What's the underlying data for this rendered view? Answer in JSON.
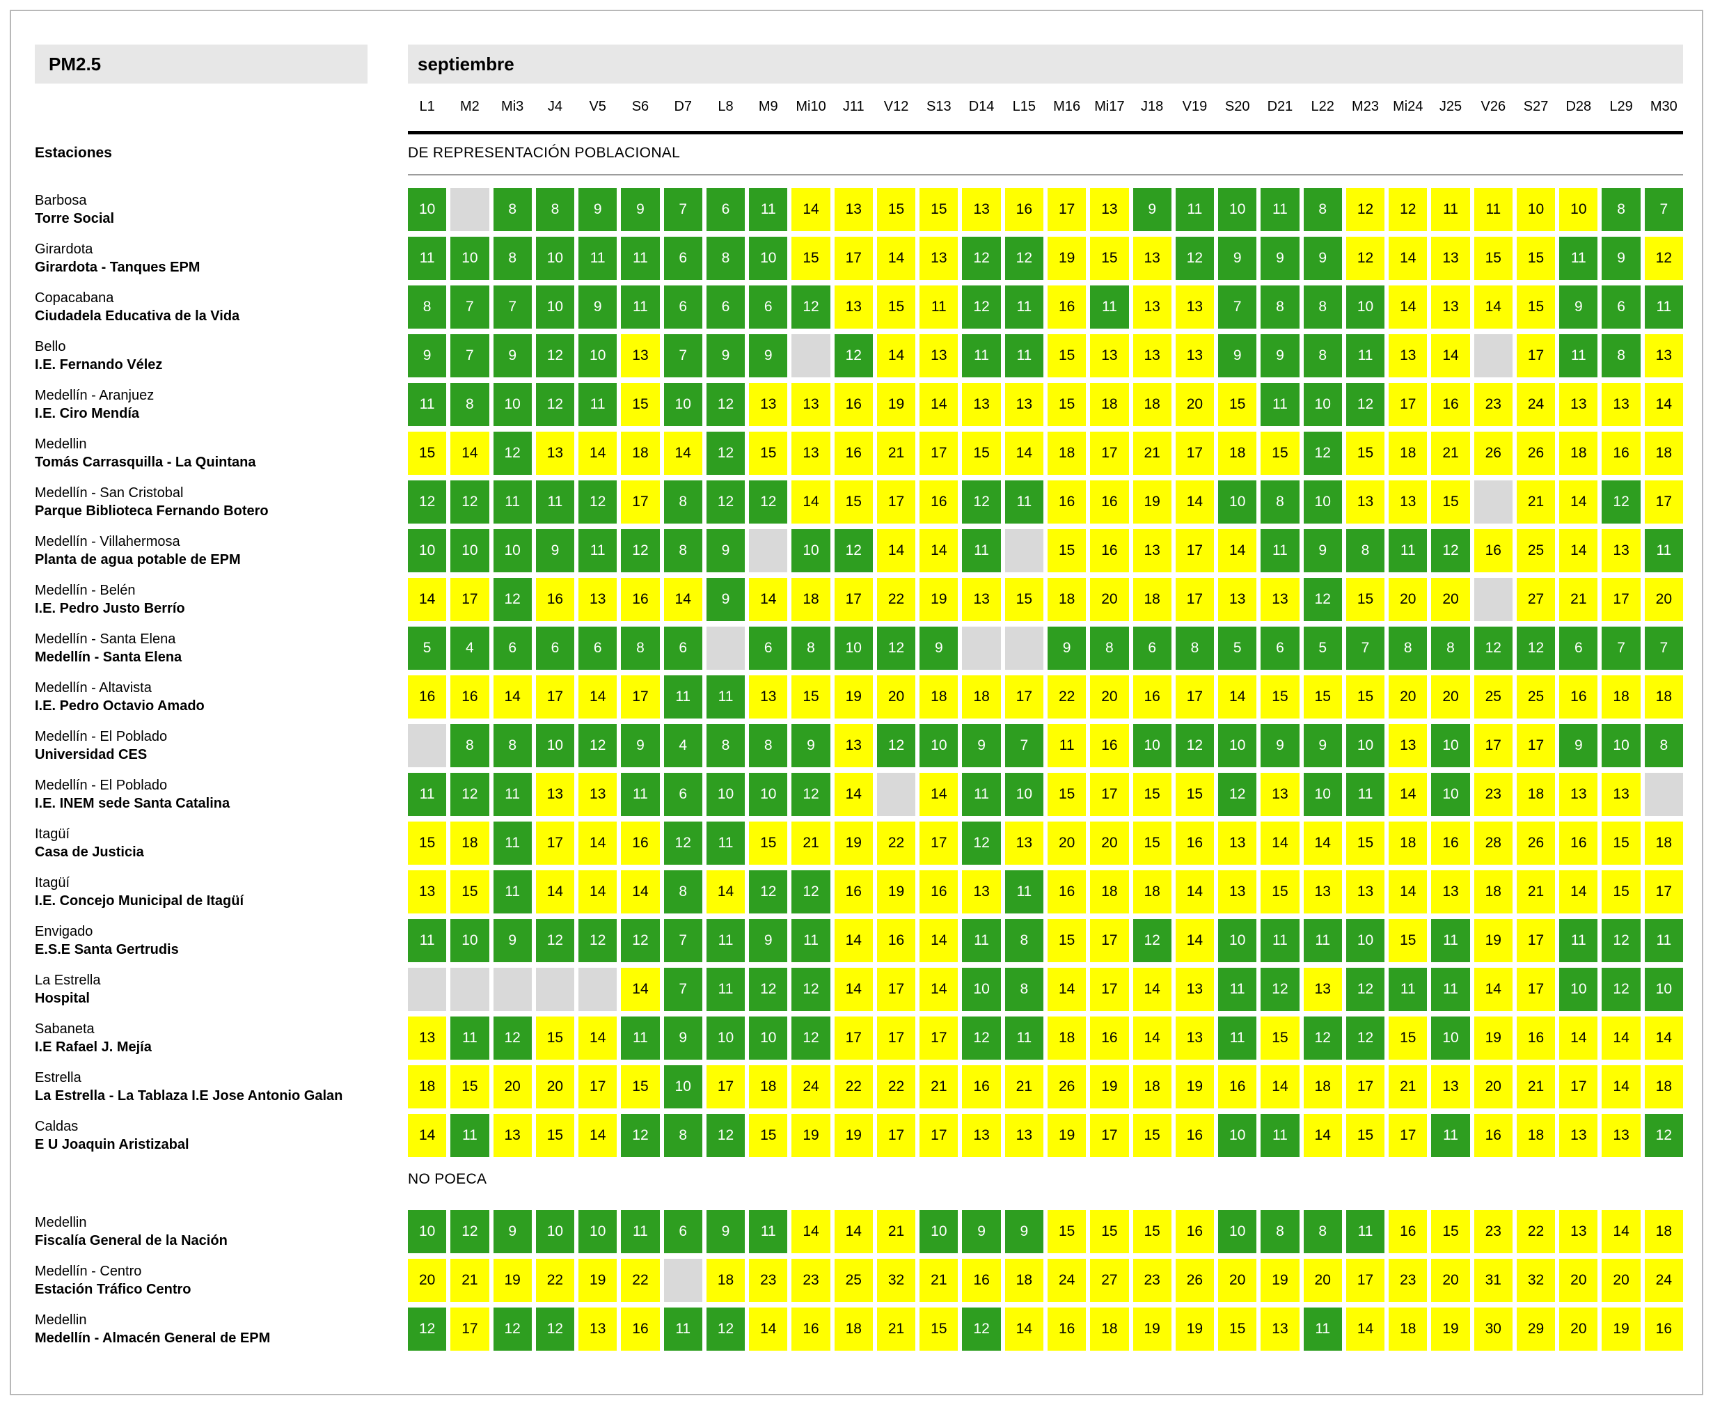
{
  "header": {
    "pollutant": "PM2.5",
    "month": "septiembre"
  },
  "labels": {
    "stations_header": "Estaciones"
  },
  "chart_data": {
    "type": "heatmap",
    "title": "PM2.5",
    "month": "septiembre",
    "columns": [
      "L1",
      "M2",
      "Mi3",
      "J4",
      "V5",
      "S6",
      "D7",
      "L8",
      "M9",
      "Mi10",
      "J11",
      "V12",
      "S13",
      "D14",
      "L15",
      "M16",
      "Mi17",
      "J18",
      "V19",
      "S20",
      "D21",
      "L22",
      "M23",
      "Mi24",
      "J25",
      "V26",
      "S27",
      "D28",
      "L29",
      "M30"
    ],
    "palette": {
      "g": "#2e9e20",
      "y": "#ffff00",
      "x": "#d9d9d9"
    },
    "palette_meaning": {
      "g": "green-good",
      "y": "yellow-moderate",
      "x": "gray-no-data"
    },
    "sections": [
      {
        "label": "DE REPRESENTACIÓN POBLACIONAL",
        "rows": [
          {
            "location": "Barbosa",
            "station": "Torre Social",
            "values": [
              10,
              null,
              8,
              8,
              9,
              9,
              7,
              6,
              11,
              14,
              13,
              15,
              15,
              13,
              16,
              17,
              13,
              9,
              11,
              10,
              11,
              8,
              12,
              12,
              11,
              11,
              10,
              10,
              8,
              7
            ],
            "colors": "gxgggggggyyyyyyyygggggyyyyyygg"
          },
          {
            "location": "Girardota",
            "station": "Girardota - Tanques EPM",
            "values": [
              11,
              10,
              8,
              10,
              11,
              11,
              6,
              8,
              10,
              15,
              17,
              14,
              13,
              12,
              12,
              19,
              15,
              13,
              12,
              9,
              9,
              9,
              12,
              14,
              13,
              15,
              15,
              11,
              9,
              12
            ],
            "colors": "gggggggggyyyyggyyyggggyyyyyggy"
          },
          {
            "location": "Copacabana",
            "station": "Ciudadela Educativa de la Vida",
            "values": [
              8,
              7,
              7,
              10,
              9,
              11,
              6,
              6,
              6,
              12,
              13,
              15,
              11,
              12,
              11,
              16,
              11,
              13,
              13,
              7,
              8,
              8,
              10,
              14,
              13,
              14,
              15,
              9,
              6,
              11
            ],
            "colors": "ggggggggggyyyggygyyggggyyyyggg"
          },
          {
            "location": "Bello",
            "station": "I.E. Fernando Vélez",
            "values": [
              9,
              7,
              9,
              12,
              10,
              13,
              7,
              9,
              9,
              null,
              12,
              14,
              13,
              11,
              11,
              15,
              13,
              13,
              13,
              9,
              9,
              8,
              11,
              13,
              14,
              null,
              17,
              11,
              8,
              13
            ],
            "colors": "gggggygggxgyyggyyyyggggyyxyggy"
          },
          {
            "location": "Medellín - Aranjuez",
            "station": "I.E. Ciro Mendía",
            "values": [
              11,
              8,
              10,
              12,
              11,
              15,
              10,
              12,
              13,
              13,
              16,
              19,
              14,
              13,
              13,
              15,
              18,
              18,
              20,
              15,
              11,
              10,
              12,
              17,
              16,
              23,
              24,
              13,
              13,
              14
            ],
            "colors": "gggggyggyyyyyyyyyyyygggyyyyyyy"
          },
          {
            "location": "Medellin",
            "station": "Tomás Carrasquilla - La Quintana",
            "values": [
              15,
              14,
              12,
              13,
              14,
              18,
              14,
              12,
              15,
              13,
              16,
              21,
              17,
              15,
              14,
              18,
              17,
              21,
              17,
              18,
              15,
              12,
              15,
              18,
              21,
              26,
              26,
              18,
              16,
              18
            ],
            "colors": "yygyyyygyyyyyyyyyyyyygyyyyyyyy"
          },
          {
            "location": "Medellín - San Cristobal",
            "station": "Parque Biblioteca Fernando Botero",
            "values": [
              12,
              12,
              11,
              11,
              12,
              17,
              8,
              12,
              12,
              14,
              15,
              17,
              16,
              12,
              11,
              16,
              16,
              19,
              14,
              10,
              8,
              10,
              13,
              13,
              15,
              null,
              21,
              14,
              12,
              17
            ],
            "colors": "gggggygggyyyyggyyyygggyyyxyygy"
          },
          {
            "location": "Medellín - Villahermosa",
            "station": "Planta de agua potable de EPM",
            "values": [
              10,
              10,
              10,
              9,
              11,
              12,
              8,
              9,
              null,
              10,
              12,
              14,
              14,
              11,
              null,
              15,
              16,
              13,
              17,
              14,
              11,
              9,
              8,
              11,
              12,
              16,
              25,
              14,
              13,
              11
            ],
            "colors": "ggggggggxggyygxyyyyygggggyyyyg"
          },
          {
            "location": "Medellín - Belén",
            "station": "I.E. Pedro Justo Berrío",
            "values": [
              14,
              17,
              12,
              16,
              13,
              16,
              14,
              9,
              14,
              18,
              17,
              22,
              19,
              13,
              15,
              18,
              20,
              18,
              17,
              13,
              13,
              12,
              15,
              20,
              20,
              null,
              27,
              21,
              17,
              20
            ],
            "colors": "yygyyyygyyyyyyyyyyyyygyyyxyyyy"
          },
          {
            "location": "Medellín - Santa Elena",
            "station": "Medellín - Santa Elena",
            "values": [
              5,
              4,
              6,
              6,
              6,
              8,
              6,
              null,
              6,
              8,
              10,
              12,
              9,
              null,
              null,
              9,
              8,
              6,
              8,
              5,
              6,
              5,
              7,
              8,
              8,
              12,
              12,
              6,
              7,
              7
            ],
            "colors": "gggggggxgggggxxggggggggggggggg"
          },
          {
            "location": "Medellín - Altavista",
            "station": "I.E. Pedro Octavio Amado",
            "values": [
              16,
              16,
              14,
              17,
              14,
              17,
              11,
              11,
              13,
              15,
              19,
              20,
              18,
              18,
              17,
              22,
              20,
              16,
              17,
              14,
              15,
              15,
              15,
              20,
              20,
              25,
              25,
              16,
              18,
              18
            ],
            "colors": "yyyyyyggyyyyyyyyyyyyyyyyyyyyyy"
          },
          {
            "location": "Medellín - El Poblado",
            "station": "Universidad CES",
            "values": [
              null,
              8,
              8,
              10,
              12,
              9,
              4,
              8,
              8,
              9,
              13,
              12,
              10,
              9,
              7,
              11,
              16,
              10,
              12,
              10,
              9,
              9,
              10,
              13,
              10,
              17,
              17,
              9,
              10,
              8
            ],
            "colors": "xgggggggggygggg yyggggggygyyggg"
          },
          {
            "location": "Medellín - El Poblado",
            "station": "I.E. INEM sede Santa Catalina",
            "values": [
              11,
              12,
              11,
              13,
              13,
              11,
              6,
              10,
              10,
              12,
              14,
              null,
              14,
              11,
              10,
              15,
              17,
              15,
              15,
              12,
              13,
              10,
              11,
              14,
              10,
              23,
              18,
              13,
              13,
              null
            ],
            "colors": "gggyygggggyxyggyyyygyggygyyyyx"
          },
          {
            "location": "Itagüí",
            "station": "Casa de Justicia",
            "values": [
              15,
              18,
              11,
              17,
              14,
              16,
              12,
              11,
              15,
              21,
              19,
              22,
              17,
              12,
              13,
              20,
              20,
              15,
              16,
              13,
              14,
              14,
              15,
              18,
              16,
              28,
              26,
              16,
              15,
              18
            ],
            "colors": "yygyyyggyyyyygyyyyyyyyyyyyyyyy"
          },
          {
            "location": "Itagüí",
            "station": "I.E. Concejo Municipal de Itagüí",
            "values": [
              13,
              15,
              11,
              14,
              14,
              14,
              8,
              14,
              12,
              12,
              16,
              19,
              16,
              13,
              11,
              16,
              18,
              18,
              14,
              13,
              15,
              13,
              13,
              14,
              13,
              18,
              21,
              14,
              15,
              17
            ],
            "colors": "yygyyygyggyyyygyyyyyyyyyyyyyyy"
          },
          {
            "location": "Envigado",
            "station": "E.S.E Santa Gertrudis",
            "values": [
              11,
              10,
              9,
              12,
              12,
              12,
              7,
              11,
              9,
              11,
              14,
              16,
              14,
              11,
              8,
              15,
              17,
              12,
              14,
              10,
              11,
              11,
              10,
              15,
              11,
              19,
              17,
              11,
              12,
              11
            ],
            "colors": "ggggggggggyyyggyygyggggygyyggg"
          },
          {
            "location": "La Estrella",
            "station": "Hospital",
            "values": [
              null,
              null,
              null,
              null,
              null,
              14,
              7,
              11,
              12,
              12,
              14,
              17,
              14,
              10,
              8,
              14,
              17,
              14,
              13,
              11,
              12,
              13,
              12,
              11,
              11,
              14,
              17,
              10,
              12,
              10
            ],
            "colors": "xxxxxyggggyyyggyyyyggygggyyggg"
          },
          {
            "location": "Sabaneta",
            "station": "I.E Rafael J. Mejía",
            "values": [
              13,
              11,
              12,
              15,
              14,
              11,
              9,
              10,
              10,
              12,
              17,
              17,
              17,
              12,
              11,
              18,
              16,
              14,
              13,
              11,
              15,
              12,
              12,
              15,
              10,
              19,
              16,
              14,
              14,
              14
            ],
            "colors": "yggyygggggyyyggyyyygyggygyyyyy"
          },
          {
            "location": "Estrella",
            "station": "La Estrella - La Tablaza I.E Jose Antonio Galan",
            "values": [
              18,
              15,
              20,
              20,
              17,
              15,
              10,
              17,
              18,
              24,
              22,
              22,
              21,
              16,
              21,
              26,
              19,
              18,
              19,
              16,
              14,
              18,
              17,
              21,
              13,
              20,
              21,
              17,
              14,
              18
            ],
            "colors": "yyyyyygyyyyyyyyyyyyyyyyyyyyyyy"
          },
          {
            "location": "Caldas",
            "station": "E U Joaquin Aristizabal",
            "values": [
              14,
              11,
              13,
              15,
              14,
              12,
              8,
              12,
              15,
              19,
              19,
              17,
              17,
              13,
              13,
              19,
              17,
              15,
              16,
              10,
              11,
              14,
              15,
              17,
              11,
              16,
              18,
              13,
              13,
              12
            ],
            "colors": "ygyyygggyyyyyyyyyyyggyyygyyyyg"
          }
        ]
      },
      {
        "label": "NO POECA",
        "rows": [
          {
            "location": "Medellin",
            "station": "Fiscalía General de la Nación",
            "values": [
              10,
              12,
              9,
              10,
              10,
              11,
              6,
              9,
              11,
              14,
              14,
              21,
              10,
              9,
              9,
              15,
              15,
              15,
              16,
              10,
              8,
              8,
              11,
              16,
              15,
              23,
              22,
              13,
              14,
              18
            ],
            "colors": "gggggggggyyygggyyyyggggyyyyyyy"
          },
          {
            "location": "Medellín - Centro",
            "station": "Estación Tráfico Centro",
            "values": [
              20,
              21,
              19,
              22,
              19,
              22,
              null,
              18,
              23,
              23,
              25,
              32,
              21,
              16,
              18,
              24,
              27,
              23,
              26,
              20,
              19,
              20,
              17,
              23,
              20,
              31,
              32,
              20,
              20,
              24
            ],
            "colors": "yyyyyyxyyyyyyyyyyyyyyyyyyyyyyy"
          },
          {
            "location": "Medellin",
            "station": "Medellín - Almacén General de EPM",
            "values": [
              12,
              17,
              12,
              12,
              13,
              16,
              11,
              12,
              14,
              16,
              18,
              21,
              15,
              12,
              14,
              16,
              18,
              19,
              19,
              15,
              13,
              11,
              14,
              18,
              19,
              30,
              29,
              20,
              19,
              16
            ],
            "colors": "gyggyyggyyyyygyyyyyyygyyyyyyyy"
          }
        ]
      }
    ]
  }
}
